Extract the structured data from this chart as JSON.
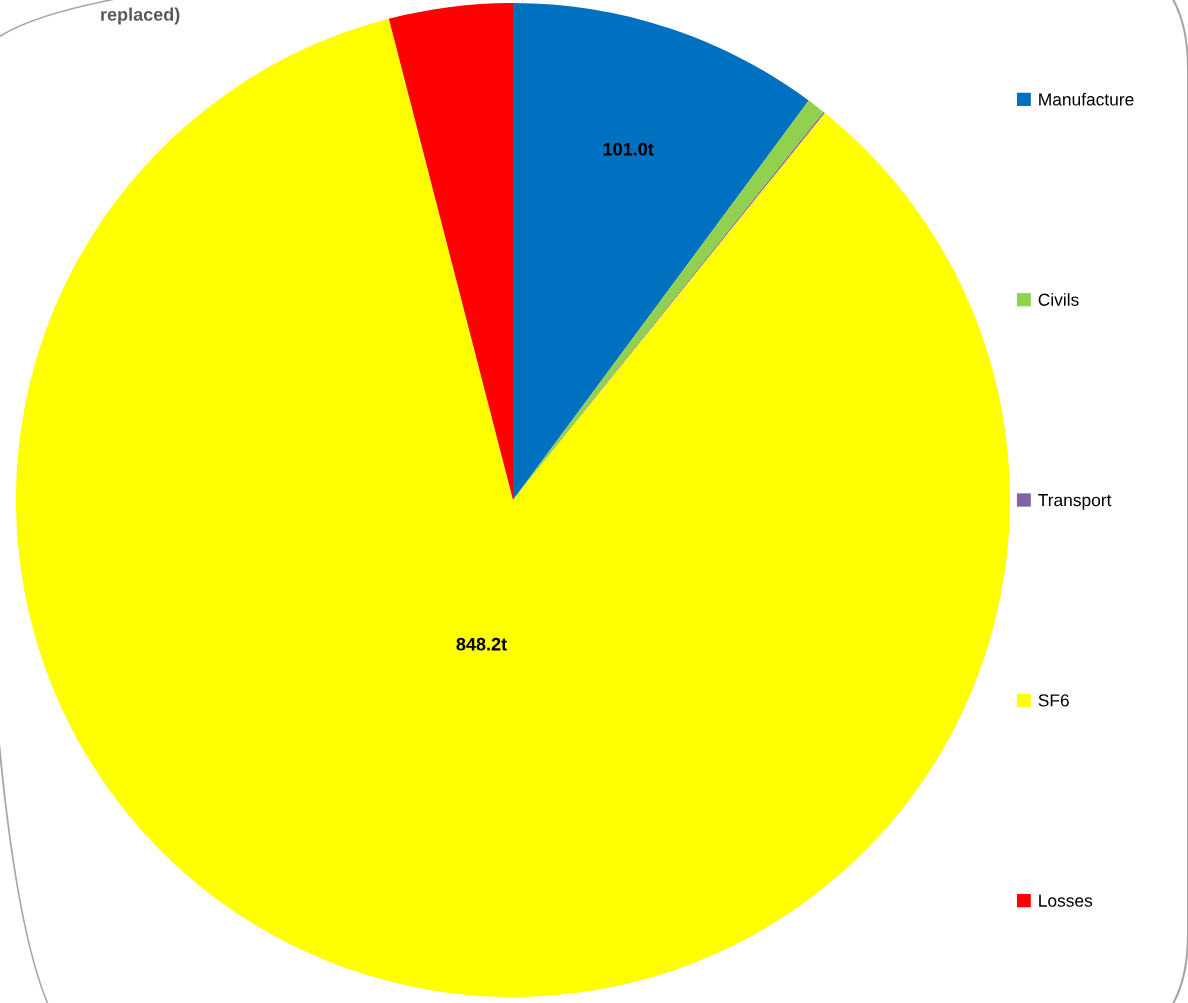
{
  "chart_data": {
    "type": "pie",
    "title": "replaced)",
    "categories": [
      "Manufacture",
      "Civils",
      "Transport",
      "SF6",
      "Losses"
    ],
    "values": [
      101.0,
      6,
      0.5,
      848.2,
      40
    ],
    "colors": [
      "#0070c0",
      "#92d050",
      "#8064a2",
      "#ffff00",
      "#ff0000"
    ],
    "value_labels": [
      "101.0t",
      null,
      null,
      "848.2t",
      null
    ],
    "legend": "right"
  }
}
